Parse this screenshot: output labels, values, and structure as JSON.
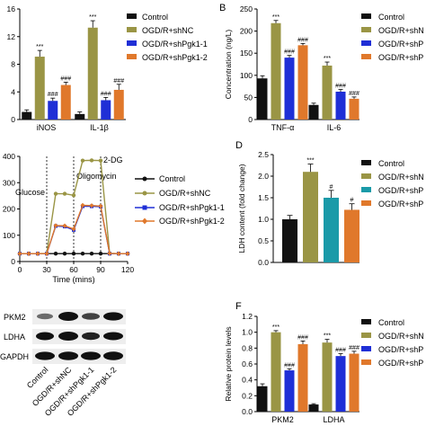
{
  "colors": {
    "control": "#111111",
    "shNC": "#9a9545",
    "shPgk1_1": "#1f2fd6",
    "shPgk1_2": "#e0782b",
    "shPgk1_1_D": "#1a9aa8"
  },
  "panels": {
    "B": "B",
    "D": "D",
    "F": "F"
  },
  "legend_labels": {
    "control": "Control",
    "shNC": "OGD/R+shNC",
    "shPgk1_1": "OGD/R+shPgk1-1",
    "shPgk1_2": "OGD/R+shPgk1-2"
  },
  "legend_labels_truncated": {
    "control": "Control",
    "shNC": "OGD/R+shN",
    "shPgk1_1": "OGD/R+shP",
    "shPgk1_2": "OGD/R+shP"
  },
  "blot": {
    "rows": [
      "PKM2",
      "LDHA",
      "GAPDH"
    ],
    "lanes": [
      "Control",
      "OGD/R+shNC",
      "OGD/R+shPgk1-1",
      "OGD/R+shPgk1-2"
    ]
  },
  "chart_data": [
    {
      "id": "A",
      "type": "bar",
      "categories": [
        "iNOS",
        "IL-1β"
      ],
      "series": [
        {
          "name": "Control",
          "values": [
            1.1,
            0.8
          ],
          "errors": [
            0.3,
            0.3
          ]
        },
        {
          "name": "OGD/R+shNC",
          "values": [
            9.1,
            13.3
          ],
          "errors": [
            0.9,
            1.0
          ]
        },
        {
          "name": "OGD/R+shPgk1-1",
          "values": [
            2.7,
            2.8
          ],
          "errors": [
            0.4,
            0.4
          ]
        },
        {
          "name": "OGD/R+shPgk1-2",
          "values": [
            5.0,
            4.3
          ],
          "errors": [
            0.4,
            0.8
          ]
        }
      ],
      "annotations": [
        [
          "",
          ""
        ],
        [
          "***",
          "***"
        ],
        [
          "###",
          "###"
        ],
        [
          "###",
          "###"
        ]
      ],
      "yticks": [
        "0",
        "4",
        "8",
        "12",
        "16"
      ],
      "ylim": [
        0,
        16
      ]
    },
    {
      "id": "B",
      "type": "bar",
      "categories": [
        "TNF-α",
        "IL-6"
      ],
      "series": [
        {
          "name": "Control",
          "values": [
            93,
            33
          ],
          "errors": [
            6,
            4
          ]
        },
        {
          "name": "OGD/R+shNC",
          "values": [
            218,
            122
          ],
          "errors": [
            6,
            8
          ]
        },
        {
          "name": "OGD/R+shPgk1-1",
          "values": [
            140,
            63
          ],
          "errors": [
            5,
            5
          ]
        },
        {
          "name": "OGD/R+shPgk1-2",
          "values": [
            168,
            47
          ],
          "errors": [
            4,
            4
          ]
        }
      ],
      "annotations": [
        [
          "",
          ""
        ],
        [
          "***",
          "***"
        ],
        [
          "###",
          "###"
        ],
        [
          "###",
          "###"
        ]
      ],
      "yticks": [
        "0",
        "50",
        "100",
        "150",
        "200",
        "250"
      ],
      "ylim": [
        0,
        250
      ],
      "ylabel": "Concentration (ng/L)"
    },
    {
      "id": "C",
      "type": "line",
      "x": [
        0,
        10,
        20,
        30,
        40,
        50,
        60,
        70,
        80,
        90,
        100,
        110,
        120
      ],
      "series": [
        {
          "name": "Control",
          "values": [
            30,
            30,
            30,
            30,
            30,
            30,
            30,
            30,
            30,
            30,
            30,
            30,
            30
          ]
        },
        {
          "name": "OGD/R+shNC",
          "values": [
            30,
            30,
            30,
            31,
            258,
            258,
            252,
            384,
            385,
            384,
            31,
            30,
            30
          ]
        },
        {
          "name": "OGD/R+shPgk1-1",
          "values": [
            30,
            30,
            30,
            30,
            135,
            133,
            120,
            210,
            210,
            209,
            30,
            30,
            30
          ]
        },
        {
          "name": "OGD/R+shPgk1-2",
          "values": [
            30,
            30,
            30,
            30,
            137,
            136,
            124,
            214,
            213,
            211,
            31,
            30,
            30
          ]
        }
      ],
      "markers": [
        {
          "x": 30,
          "label": "Glucose"
        },
        {
          "x": 60,
          "label": "Oligomycin"
        },
        {
          "x": 90,
          "label": "2-DG"
        }
      ],
      "xticks": [
        "0",
        "30",
        "60",
        "90",
        "120"
      ],
      "yticks": [
        "0",
        "100",
        "200",
        "300",
        "400"
      ],
      "xlabel": "Time (mins)",
      "xlim": [
        0,
        120
      ],
      "ylim": [
        0,
        400
      ]
    },
    {
      "id": "D",
      "type": "bar",
      "categories": [
        "Control",
        "OGD/R+shNC",
        "OGD/R+shPgk1-1",
        "OGD/R+shPgk1-2"
      ],
      "values": [
        1.0,
        2.1,
        1.5,
        1.22
      ],
      "errors": [
        0.09,
        0.18,
        0.17,
        0.14
      ],
      "annotations": [
        "",
        "***",
        "#",
        "#"
      ],
      "yticks": [
        "0.0",
        "0.5",
        "1.0",
        "1.5",
        "2.0",
        "2.5"
      ],
      "ylim": [
        0,
        2.5
      ],
      "ylabel": "LDH content (fold change)"
    },
    {
      "id": "F",
      "type": "bar",
      "categories": [
        "PKM2",
        "LDHA"
      ],
      "series": [
        {
          "name": "Control",
          "values": [
            0.32,
            0.09
          ],
          "errors": [
            0.03,
            0.01
          ]
        },
        {
          "name": "OGD/R+shNC",
          "values": [
            1.0,
            0.87
          ],
          "errors": [
            0.02,
            0.04
          ]
        },
        {
          "name": "OGD/R+shPgk1-1",
          "values": [
            0.52,
            0.7
          ],
          "errors": [
            0.02,
            0.03
          ]
        },
        {
          "name": "OGD/R+shPgk1-2",
          "values": [
            0.85,
            0.73
          ],
          "errors": [
            0.04,
            0.03
          ]
        }
      ],
      "annotations": [
        [
          "",
          ""
        ],
        [
          "***",
          "***"
        ],
        [
          "###",
          "###"
        ],
        [
          "###",
          "###"
        ]
      ],
      "yticks": [
        "0.0",
        "0.2",
        "0.4",
        "0.6",
        "0.8",
        "1.0",
        "1.2"
      ],
      "ylim": [
        0,
        1.2
      ],
      "ylabel": "Relative protein levels"
    }
  ]
}
